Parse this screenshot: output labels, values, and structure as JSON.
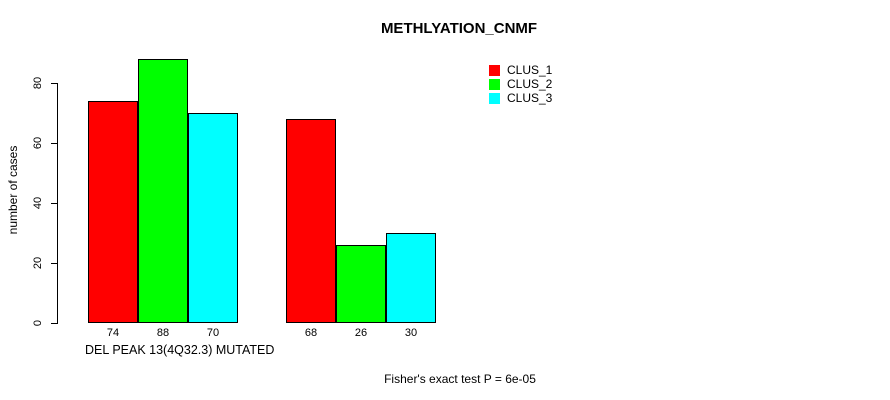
{
  "chart_data": {
    "type": "bar",
    "title": "METHLYATION_CNMF",
    "ylabel": "number of cases",
    "xlabel": "DEL PEAK 13(4Q32.3) MUTATED",
    "footnote": "Fisher's exact test P = 6e-05",
    "ylim": [
      0,
      88
    ],
    "yticks": [
      0,
      20,
      40,
      60,
      80
    ],
    "grid": false,
    "legend_position": "top-right",
    "groups": 2,
    "series": [
      {
        "name": "CLUS_1",
        "color": "#FF0000",
        "values": [
          74,
          68
        ]
      },
      {
        "name": "CLUS_2",
        "color": "#00FF00",
        "values": [
          88,
          26
        ]
      },
      {
        "name": "CLUS_3",
        "color": "#00FFFF",
        "values": [
          70,
          30
        ]
      }
    ],
    "bar_labels": [
      [
        "74",
        "88",
        "70"
      ],
      [
        "68",
        "26",
        "30"
      ]
    ]
  }
}
